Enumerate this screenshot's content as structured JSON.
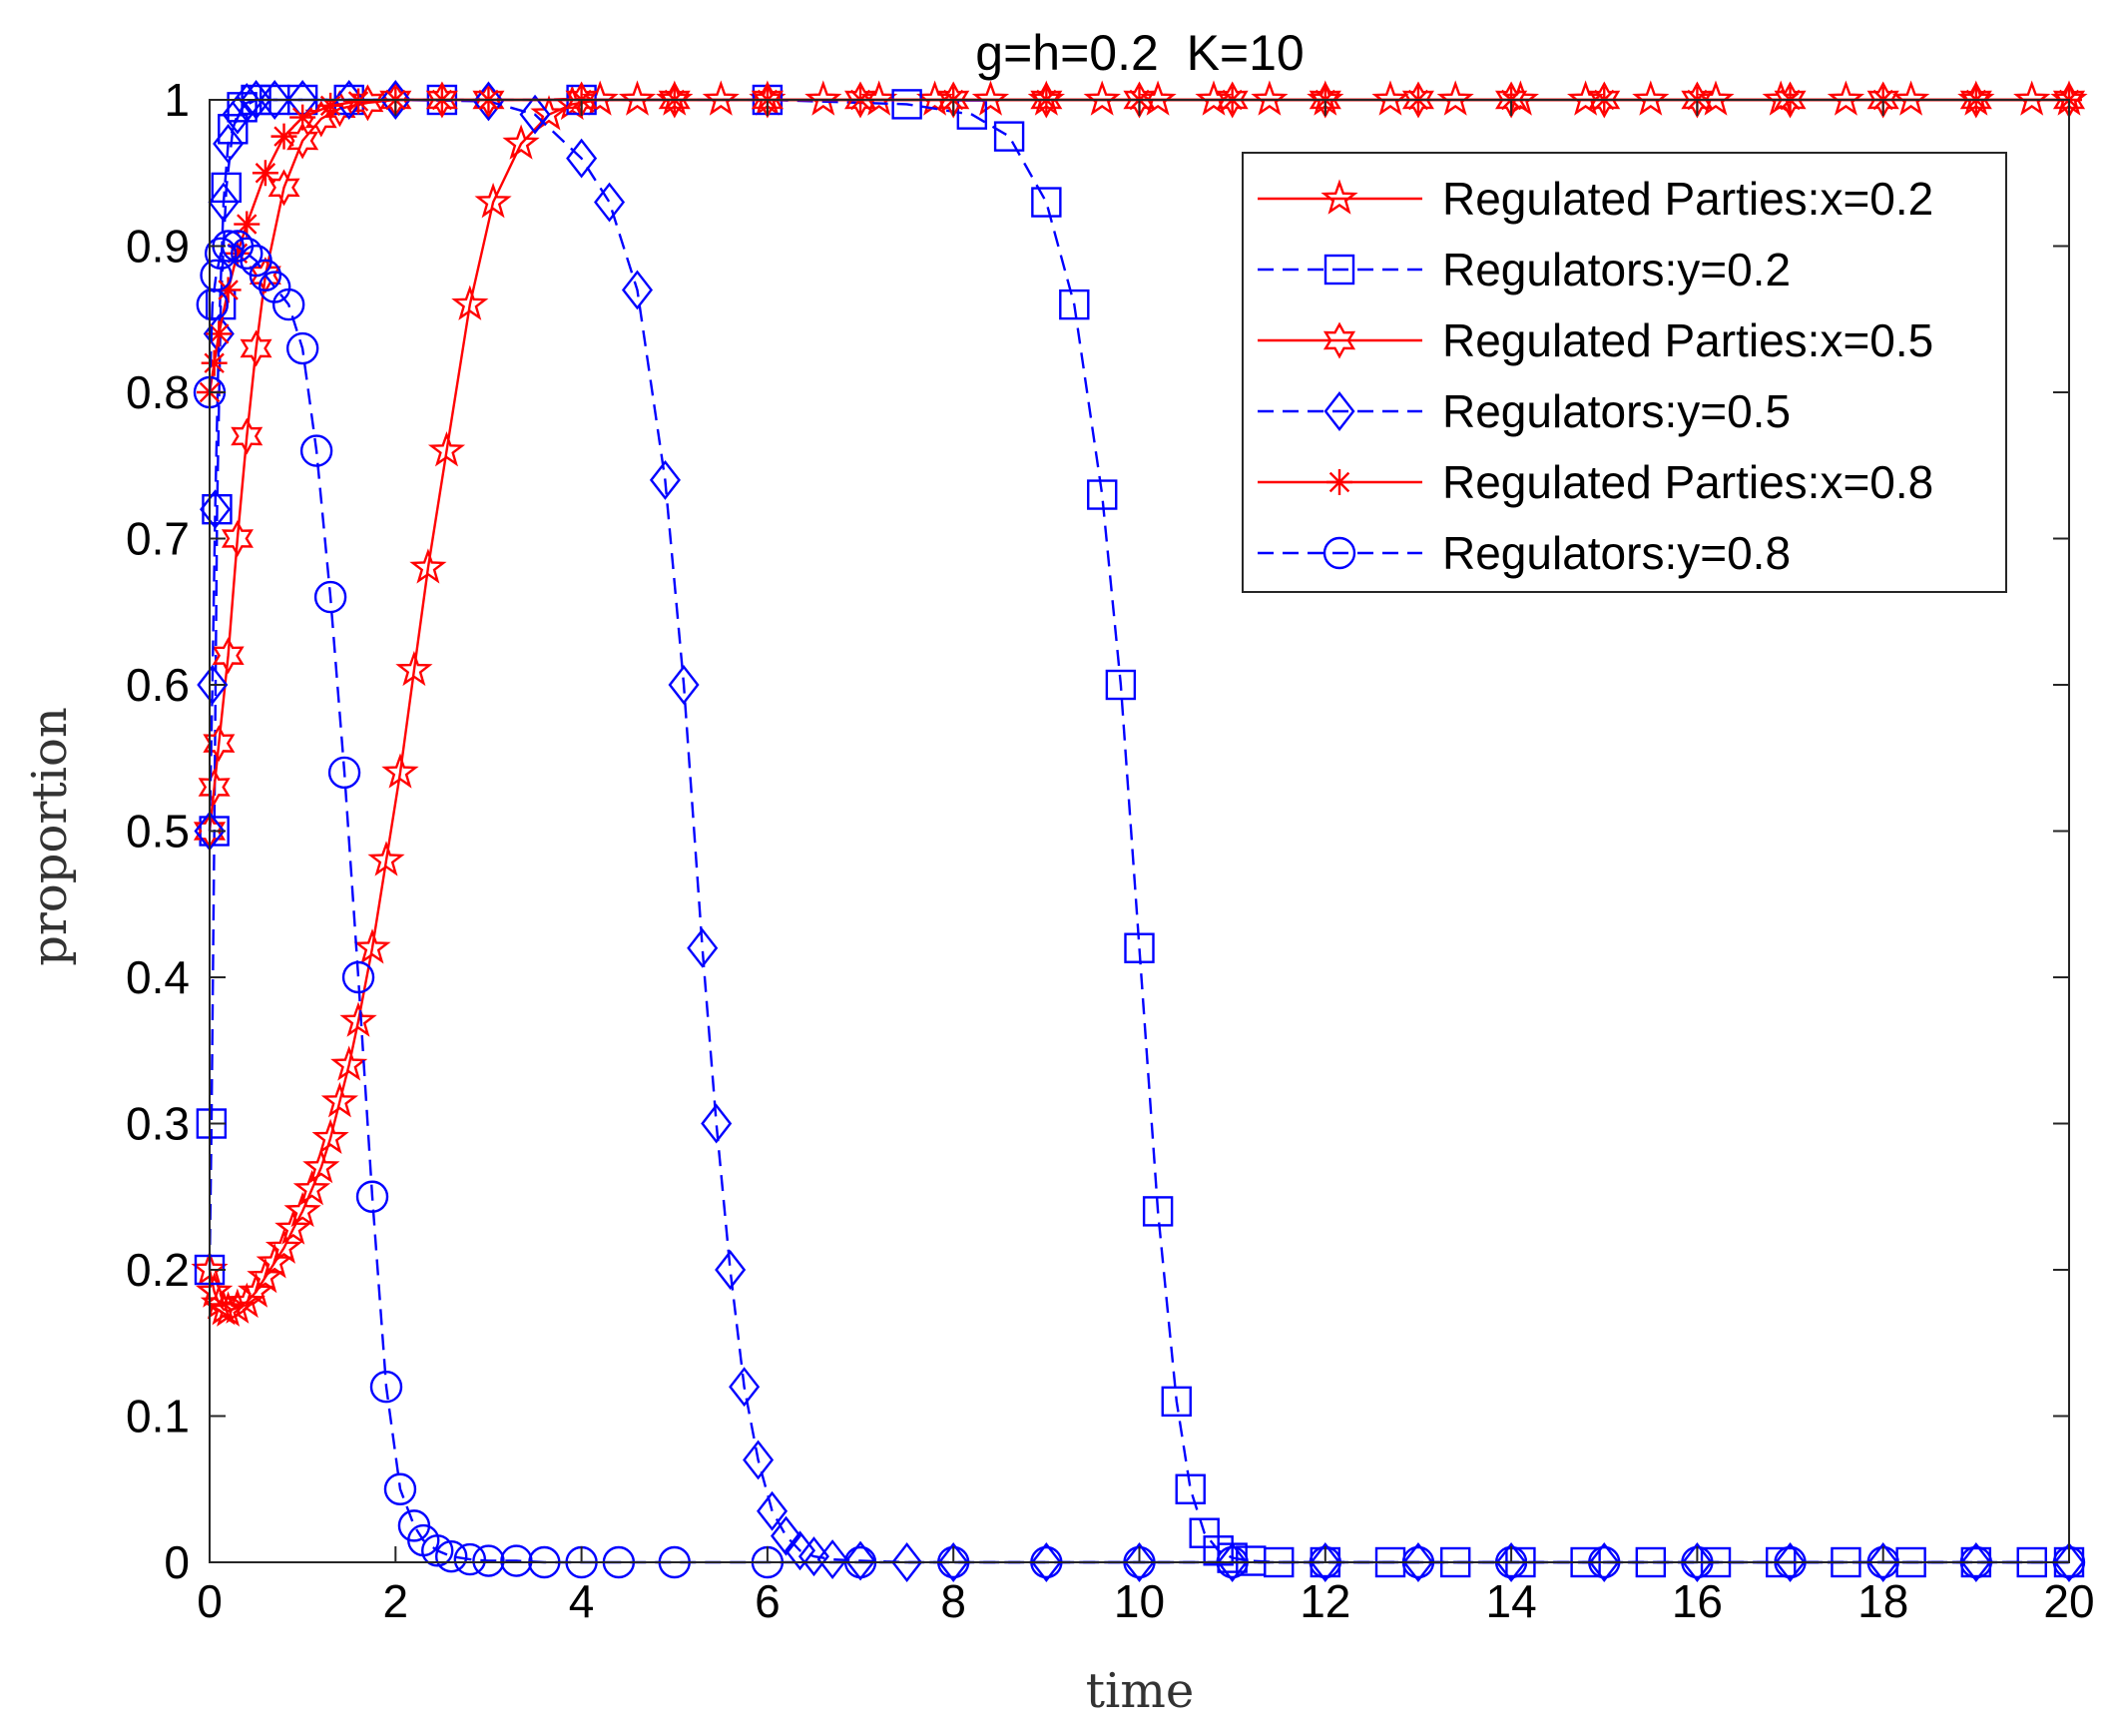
{
  "chart_data": {
    "type": "line",
    "title": "g=h=0.2  K=10",
    "xlabel": "time",
    "ylabel": "proportion",
    "xlim": [
      0,
      20
    ],
    "ylim": [
      0,
      1
    ],
    "x_ticks": [
      0,
      2,
      4,
      6,
      8,
      10,
      12,
      14,
      16,
      18,
      20
    ],
    "x_tick_labels": [
      "0",
      "2",
      "4",
      "6",
      "8",
      "10",
      "12",
      "14",
      "16",
      "18",
      "20"
    ],
    "y_ticks": [
      0,
      0.1,
      0.2,
      0.3,
      0.4,
      0.5,
      0.6,
      0.7,
      0.8,
      0.9,
      1
    ],
    "y_tick_labels": [
      "0",
      "0.1",
      "0.2",
      "0.3",
      "0.4",
      "0.5",
      "0.6",
      "0.7",
      "0.8",
      "0.9",
      "1"
    ],
    "grid": false,
    "legend_position": "top-right",
    "series": [
      {
        "name": "Regulated Parties:x=0.2",
        "color": "#ff0000",
        "line_style": "solid",
        "marker": "pentagram",
        "x": [
          0,
          0.05,
          0.1,
          0.15,
          0.2,
          0.3,
          0.4,
          0.5,
          0.6,
          0.7,
          0.8,
          0.9,
          1.0,
          1.1,
          1.2,
          1.3,
          1.4,
          1.5,
          1.6,
          1.75,
          1.9,
          2.05,
          2.2,
          2.35,
          2.55,
          2.8,
          3.05,
          3.35,
          3.65,
          3.9,
          4.2,
          4.6,
          5.0,
          5.5,
          6.0,
          6.6,
          7.2,
          7.8,
          8.4,
          9.0,
          9.6,
          10.2,
          10.8,
          11.4,
          12.0,
          12.7,
          13.4,
          14.1,
          14.8,
          15.5,
          16.2,
          16.9,
          17.6,
          18.3,
          19.0,
          19.6,
          20.0
        ],
        "y": [
          0.2,
          0.185,
          0.177,
          0.173,
          0.172,
          0.174,
          0.178,
          0.185,
          0.195,
          0.205,
          0.215,
          0.228,
          0.24,
          0.255,
          0.27,
          0.29,
          0.315,
          0.34,
          0.37,
          0.42,
          0.48,
          0.54,
          0.61,
          0.68,
          0.76,
          0.86,
          0.93,
          0.97,
          0.99,
          0.997,
          1,
          1,
          1,
          1,
          1,
          1,
          1,
          1,
          1,
          1,
          1,
          1,
          1,
          1,
          1,
          1,
          1,
          1,
          1,
          1,
          1,
          1,
          1,
          1,
          1,
          1,
          1
        ]
      },
      {
        "name": "Regulators:y=0.2",
        "color": "#0000ff",
        "line_style": "dashed",
        "marker": "square",
        "x": [
          0,
          0.02,
          0.05,
          0.08,
          0.12,
          0.18,
          0.25,
          0.35,
          0.5,
          0.7,
          1.0,
          1.5,
          2.5,
          4.0,
          6.0,
          7.5,
          8.2,
          8.6,
          9.0,
          9.3,
          9.6,
          9.8,
          10.0,
          10.2,
          10.4,
          10.55,
          10.7,
          10.85,
          11.0,
          11.2,
          11.5,
          12.0,
          12.7,
          13.4,
          14.1,
          14.8,
          15.5,
          16.2,
          16.9,
          17.6,
          18.3,
          19.0,
          19.6,
          20.0
        ],
        "y": [
          0.2,
          0.3,
          0.5,
          0.72,
          0.86,
          0.94,
          0.98,
          0.995,
          1,
          1,
          1,
          1,
          1,
          1,
          1,
          0.997,
          0.99,
          0.975,
          0.93,
          0.86,
          0.73,
          0.6,
          0.42,
          0.24,
          0.11,
          0.05,
          0.02,
          0.008,
          0.003,
          0.001,
          0,
          0,
          0,
          0,
          0,
          0,
          0,
          0,
          0,
          0,
          0,
          0,
          0,
          0
        ]
      },
      {
        "name": "Regulated Parties:x=0.5",
        "color": "#ff0000",
        "line_style": "solid",
        "marker": "hexagram",
        "x": [
          0,
          0.05,
          0.1,
          0.2,
          0.3,
          0.4,
          0.5,
          0.6,
          0.8,
          1.0,
          1.2,
          1.4,
          1.7,
          2.0,
          2.5,
          3.0,
          4.0,
          5.0,
          6.0,
          7.0,
          8.0,
          9.0,
          10.0,
          11.0,
          12.0,
          13.0,
          14.0,
          15.0,
          16.0,
          17.0,
          18.0,
          19.0,
          20.0
        ],
        "y": [
          0.5,
          0.53,
          0.56,
          0.62,
          0.7,
          0.77,
          0.83,
          0.88,
          0.94,
          0.972,
          0.987,
          0.994,
          0.998,
          1,
          1,
          1,
          1,
          1,
          1,
          1,
          1,
          1,
          1,
          1,
          1,
          1,
          1,
          1,
          1,
          1,
          1,
          1,
          1
        ]
      },
      {
        "name": "Regulators:y=0.5",
        "color": "#0000ff",
        "line_style": "dashed",
        "marker": "diamond",
        "x": [
          0,
          0.03,
          0.06,
          0.1,
          0.15,
          0.2,
          0.3,
          0.4,
          0.5,
          0.7,
          1.0,
          1.5,
          2.0,
          3.0,
          3.5,
          4.0,
          4.3,
          4.6,
          4.9,
          5.1,
          5.3,
          5.45,
          5.6,
          5.75,
          5.9,
          6.05,
          6.2,
          6.35,
          6.5,
          6.7,
          7.0,
          7.5,
          8.0,
          9.0,
          10.0,
          11.0,
          12.0,
          13.0,
          14.0,
          15.0,
          16.0,
          17.0,
          18.0,
          19.0,
          20.0
        ],
        "y": [
          0.5,
          0.6,
          0.72,
          0.84,
          0.93,
          0.97,
          0.99,
          0.998,
          1,
          1,
          1,
          1,
          1,
          0.999,
          0.99,
          0.96,
          0.93,
          0.87,
          0.74,
          0.6,
          0.42,
          0.3,
          0.2,
          0.12,
          0.07,
          0.035,
          0.018,
          0.008,
          0.004,
          0.002,
          0.001,
          0,
          0,
          0,
          0,
          0,
          0,
          0,
          0,
          0,
          0,
          0,
          0,
          0,
          0
        ]
      },
      {
        "name": "Regulated Parties:x=0.8",
        "color": "#ff0000",
        "line_style": "solid",
        "marker": "asterisk",
        "x": [
          0,
          0.05,
          0.1,
          0.2,
          0.3,
          0.4,
          0.6,
          0.8,
          1.0,
          1.3,
          1.6,
          2.0,
          2.5,
          3.0,
          4.0,
          5.0,
          6.0,
          7.0,
          8.0,
          9.0,
          10.0,
          11.0,
          12.0,
          13.0,
          14.0,
          15.0,
          16.0,
          17.0,
          18.0,
          19.0,
          20.0
        ],
        "y": [
          0.8,
          0.82,
          0.84,
          0.87,
          0.895,
          0.915,
          0.95,
          0.975,
          0.988,
          0.996,
          0.999,
          1,
          1,
          1,
          1,
          1,
          1,
          1,
          1,
          1,
          1,
          1,
          1,
          1,
          1,
          1,
          1,
          1,
          1,
          1,
          1
        ]
      },
      {
        "name": "Regulators:y=0.8",
        "color": "#0000ff",
        "line_style": "dashed",
        "marker": "circle",
        "x": [
          0,
          0.03,
          0.07,
          0.12,
          0.2,
          0.3,
          0.4,
          0.5,
          0.6,
          0.7,
          0.85,
          1.0,
          1.15,
          1.3,
          1.45,
          1.6,
          1.75,
          1.9,
          2.05,
          2.2,
          2.3,
          2.45,
          2.6,
          2.8,
          3.0,
          3.3,
          3.6,
          4.0,
          4.4,
          5.0,
          6.0,
          7.0,
          8.0,
          9.0,
          10.0,
          11.0,
          12.0,
          13.0,
          14.0,
          15.0,
          16.0,
          17.0,
          18.0,
          19.0,
          20.0
        ],
        "y": [
          0.8,
          0.86,
          0.88,
          0.895,
          0.9,
          0.9,
          0.895,
          0.89,
          0.88,
          0.872,
          0.86,
          0.83,
          0.76,
          0.66,
          0.54,
          0.4,
          0.25,
          0.12,
          0.05,
          0.025,
          0.015,
          0.008,
          0.004,
          0.002,
          0.001,
          0.001,
          0,
          0,
          0,
          0,
          0,
          0,
          0,
          0,
          0,
          0,
          0,
          0,
          0,
          0,
          0,
          0,
          0,
          0,
          0
        ]
      }
    ]
  }
}
